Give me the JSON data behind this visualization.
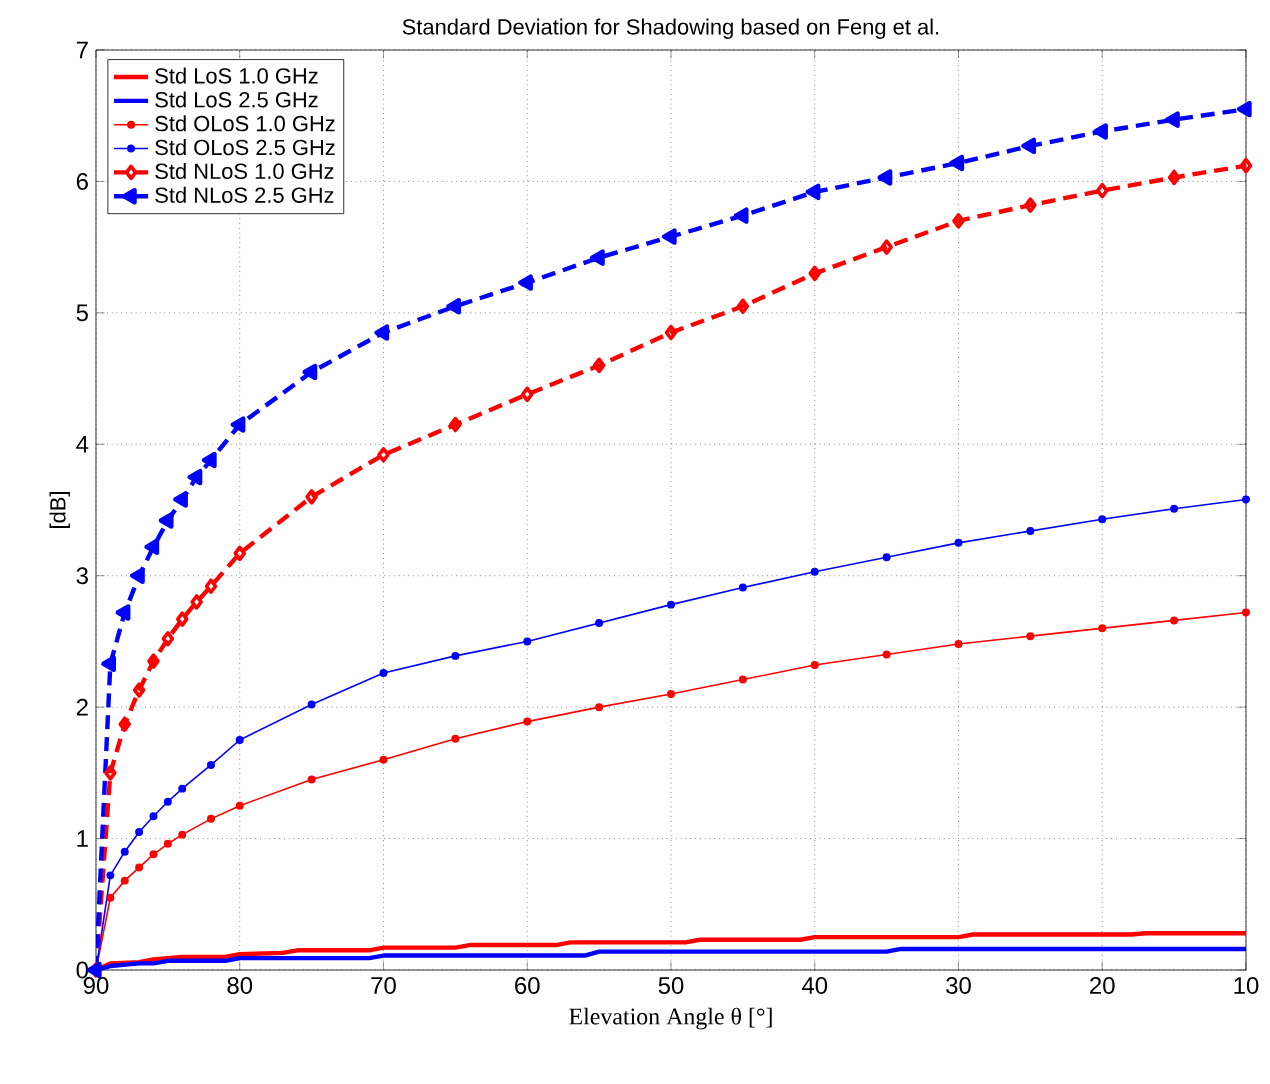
{
  "chart_data": {
    "type": "line",
    "title": "Standard Deviation for Shadowing based on Feng et al.",
    "xlabel": "Elevation Angle θ [°]",
    "ylabel": "[dB]",
    "xlim": [
      90,
      10
    ],
    "ylim": [
      0,
      7
    ],
    "xticks": [
      90,
      80,
      70,
      60,
      50,
      40,
      30,
      20,
      10
    ],
    "yticks": [
      0,
      1,
      2,
      3,
      4,
      5,
      6,
      7
    ],
    "grid": true,
    "legend": "top left",
    "series": [
      {
        "name": "Std LoS 1.0 GHz",
        "color": "#ff0000",
        "marker": "none",
        "line_style": "solid",
        "x": [
          90,
          89,
          87,
          86,
          84,
          81,
          80,
          77,
          76,
          71,
          70,
          65,
          64,
          58,
          57,
          49,
          48,
          41,
          40,
          30,
          29,
          18,
          17,
          10
        ],
        "values": [
          0,
          0.05,
          0.06,
          0.08,
          0.1,
          0.1,
          0.12,
          0.13,
          0.15,
          0.15,
          0.17,
          0.17,
          0.19,
          0.19,
          0.21,
          0.21,
          0.23,
          0.23,
          0.25,
          0.25,
          0.27,
          0.27,
          0.28,
          0.28
        ]
      },
      {
        "name": "Std LoS 2.5 GHz",
        "color": "#0000ff",
        "marker": "none",
        "line_style": "solid",
        "x": [
          90,
          89,
          87,
          86,
          85,
          81,
          80,
          71,
          70,
          56,
          55,
          35,
          34,
          10
        ],
        "values": [
          0,
          0.03,
          0.05,
          0.05,
          0.07,
          0.07,
          0.09,
          0.09,
          0.11,
          0.11,
          0.14,
          0.14,
          0.16,
          0.16
        ]
      },
      {
        "name": "Std OLoS 1.0 GHz",
        "color": "#ff0000",
        "marker": "circle",
        "line_style": "solid",
        "x": [
          90,
          89,
          88,
          87,
          86,
          85,
          84,
          82,
          80,
          75,
          70,
          65,
          60,
          55,
          50,
          45,
          40,
          35,
          30,
          25,
          20,
          15,
          10
        ],
        "values": [
          0,
          0.55,
          0.68,
          0.78,
          0.88,
          0.96,
          1.03,
          1.15,
          1.25,
          1.45,
          1.6,
          1.76,
          1.89,
          2.0,
          2.1,
          2.21,
          2.32,
          2.4,
          2.48,
          2.54,
          2.6,
          2.66,
          2.72
        ]
      },
      {
        "name": "Std OLoS 2.5 GHz",
        "color": "#0000ff",
        "marker": "circle",
        "line_style": "solid",
        "x": [
          90,
          89,
          88,
          87,
          86,
          85,
          84,
          82,
          80,
          75,
          70,
          65,
          60,
          55,
          50,
          45,
          40,
          35,
          30,
          25,
          20,
          15,
          10
        ],
        "values": [
          0,
          0.72,
          0.9,
          1.05,
          1.17,
          1.28,
          1.38,
          1.56,
          1.75,
          2.02,
          2.26,
          2.39,
          2.5,
          2.64,
          2.78,
          2.91,
          3.03,
          3.14,
          3.25,
          3.34,
          3.43,
          3.51,
          3.58
        ]
      },
      {
        "name": "Std NLoS 1.0 GHz",
        "color": "#ff0000",
        "marker": "diamond",
        "line_style": "dashed",
        "x": [
          90,
          89,
          88,
          87,
          86,
          85,
          84,
          83,
          82,
          80,
          75,
          70,
          65,
          60,
          55,
          50,
          45,
          40,
          35,
          30,
          25,
          20,
          15,
          10
        ],
        "values": [
          0,
          1.5,
          1.87,
          2.13,
          2.35,
          2.52,
          2.67,
          2.8,
          2.92,
          3.17,
          3.6,
          3.92,
          4.15,
          4.38,
          4.6,
          4.85,
          5.05,
          5.3,
          5.5,
          5.7,
          5.82,
          5.93,
          6.03,
          6.12
        ]
      },
      {
        "name": "Std NLoS 2.5 GHz",
        "color": "#0000ff",
        "marker": "triangle",
        "line_style": "dashed",
        "x": [
          90,
          89,
          88,
          87,
          86,
          85,
          84,
          83,
          82,
          80,
          75,
          70,
          65,
          60,
          55,
          50,
          45,
          40,
          35,
          30,
          25,
          20,
          15,
          10
        ],
        "values": [
          0,
          2.33,
          2.72,
          3.0,
          3.22,
          3.42,
          3.58,
          3.75,
          3.88,
          4.15,
          4.55,
          4.85,
          5.05,
          5.23,
          5.42,
          5.58,
          5.74,
          5.92,
          6.03,
          6.14,
          6.27,
          6.38,
          6.47,
          6.55
        ]
      }
    ]
  }
}
